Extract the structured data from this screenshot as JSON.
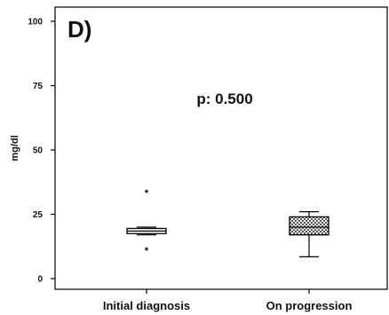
{
  "chart_data": {
    "type": "box",
    "panel_label": "D)",
    "annotation": "p: 0.500",
    "title": "",
    "xlabel": "",
    "ylabel": "mg/dl",
    "ylim": [
      0,
      100
    ],
    "yticks": [
      0,
      25,
      50,
      75,
      100
    ],
    "grid": false,
    "legend": "none",
    "categories": [
      "Initial diagnosis",
      "On progression"
    ],
    "boxes": [
      {
        "category": "Initial diagnosis",
        "whisker_low": 17,
        "q1": 17.5,
        "median": 18.5,
        "q3": 19.5,
        "whisker_high": 20,
        "outliers": [
          11,
          33.5
        ],
        "fill": "plain"
      },
      {
        "category": "On progression",
        "whisker_low": 8.5,
        "q1": 17,
        "median": 20,
        "q3": 24,
        "whisker_high": 26,
        "outliers": [],
        "fill": "checkered"
      }
    ]
  }
}
